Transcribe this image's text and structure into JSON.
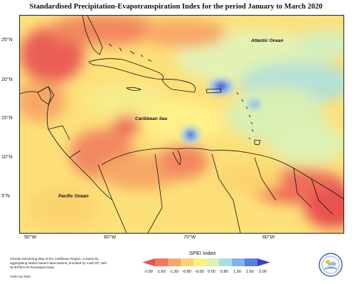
{
  "title": "Standardised Precipitation-Evapotranspiration Index for the period January to March 2020",
  "map": {
    "lat_labels": [
      "25°N",
      "20°N",
      "15°N",
      "10°N",
      "5°N"
    ],
    "lon_labels": [
      "90°W",
      "80°W",
      "70°W",
      "60°W"
    ],
    "place_labels": {
      "atlantic": "Atlantic Ocean",
      "caribbean": "Caribbean Sea",
      "pacific": "Pacific Ocean"
    }
  },
  "legend": {
    "title": "SPEI Index",
    "ticks": [
      "-2.00",
      "-1.60",
      "-1.30",
      "-0.80",
      "-0.50",
      "0.50",
      "0.80",
      "1.30",
      "1.60",
      "2.00"
    ],
    "colors": [
      "#e8534f",
      "#f0795c",
      "#f6a866",
      "#fbd46f",
      "#fff178",
      "#dbf3b6",
      "#a9dfe3",
      "#7fb5ee",
      "#5c7ee4",
      "#3d3fc7"
    ]
  },
  "credit": {
    "text": "Climate Monitoring Map of the Caribbean Region. Created by aggregating station based observations, provided by CariCOF, with NCEP/NCAR Reanalysis Data.",
    "year": "CIMH Apr 2020"
  },
  "logo": {
    "text": "CIMH"
  }
}
